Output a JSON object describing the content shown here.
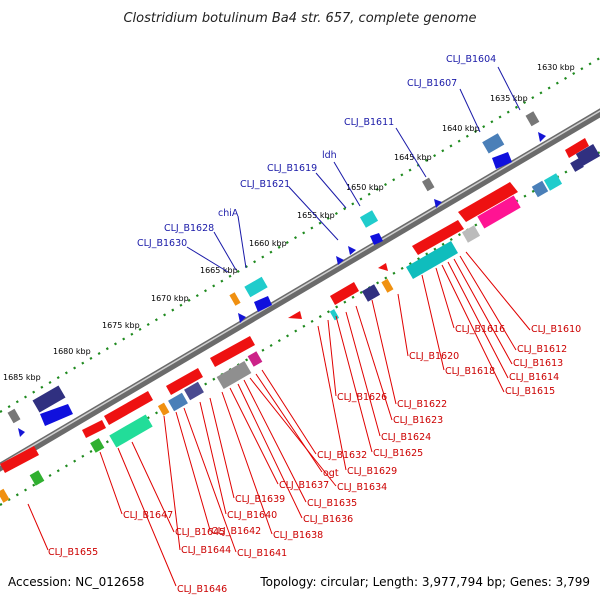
{
  "title": "Clostridium botulinum Ba4 str. 657, complete genome",
  "accession": "Accession: NC_012658",
  "topology": "Topology: circular; Length: 3,977,794 bp; Genes: 3,799",
  "kbp_ticks": [
    "1630 kbp",
    "1635 kbp",
    "1640 kbp",
    "1645 kbp",
    "1650 kbp",
    "1655 kbp",
    "1660 kbp",
    "1665 kbp",
    "1670 kbp",
    "1675 kbp",
    "1680 kbp",
    "1685 kbp"
  ],
  "labels_outer": [
    "CLJ_B1604",
    "CLJ_B1607",
    "CLJ_B1611",
    "ldh",
    "CLJ_B1619",
    "CLJ_B1621",
    "chiA",
    "CLJ_B1628",
    "CLJ_B1630"
  ],
  "labels_inner": [
    "CLJ_B1610",
    "CLJ_B1612",
    "CLJ_B1613",
    "CLJ_B1614",
    "CLJ_B1615",
    "CLJ_B1616",
    "CLJ_B1618",
    "CLJ_B1620",
    "CLJ_B1622",
    "CLJ_B1623",
    "CLJ_B1624",
    "CLJ_B1625",
    "CLJ_B1626",
    "CLJ_B1629",
    "CLJ_B1632",
    "ogt",
    "CLJ_B1634",
    "CLJ_B1635",
    "CLJ_B1636",
    "CLJ_B1637",
    "CLJ_B1638",
    "CLJ_B1639",
    "CLJ_B1640",
    "CLJ_B1641",
    "CLJ_B1642",
    "CLJ_B1644",
    "CLJ_B1645",
    "CLJ_B1646",
    "CLJ_B1647",
    "CLJ_B1655"
  ],
  "colors": {
    "forward_gene": "#ee1111",
    "outer_line": "#1a1aa8",
    "inner_line": "#e00000",
    "tick_dot": "#1f8a1f"
  }
}
